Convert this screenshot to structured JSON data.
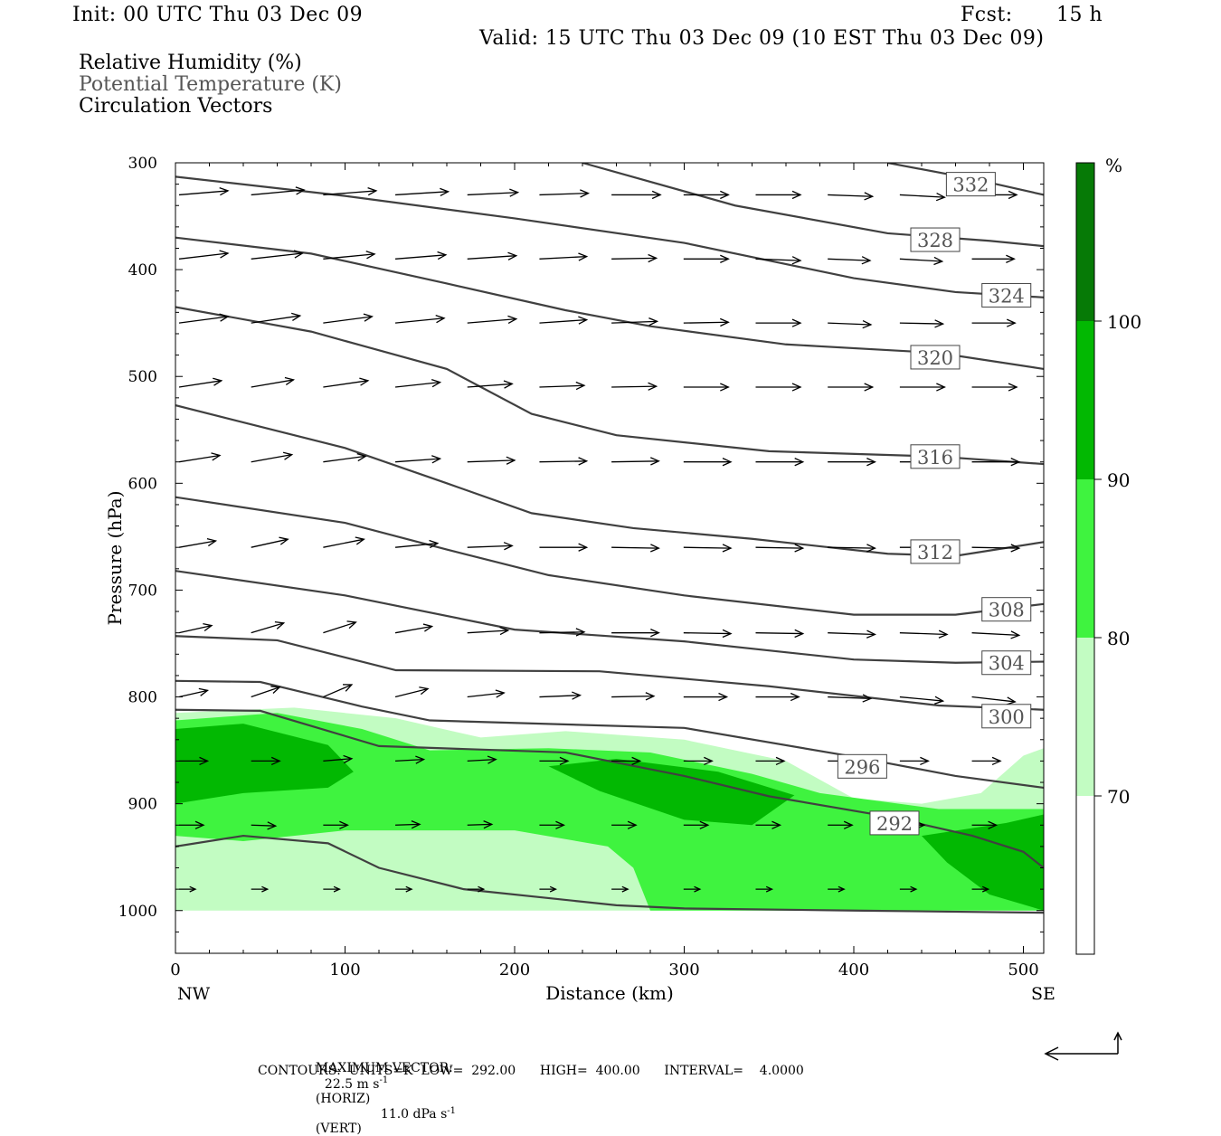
{
  "header": {
    "init": "Init: 00 UTC Thu 03 Dec 09",
    "fcst_label": "Fcst:",
    "fcst_value": "15 h",
    "valid": "Valid: 15 UTC Thu 03 Dec 09 (10 EST Thu 03 Dec 09)"
  },
  "fields": {
    "rh": "Relative Humidity (%)",
    "theta": "Potential Temperature (K)",
    "vectors": "Circulation Vectors"
  },
  "colors": {
    "rh_70_80": "#c2fcc2",
    "rh_80_90": "#3ff33f",
    "rh_90_100": "#02b802",
    "rh_100_plus": "#067a06",
    "contour": "#404040",
    "vector": "#000000"
  },
  "chart_data": {
    "type": "cross-section",
    "xlabel": "Distance (km)",
    "ylabel": "Pressure (hPa)",
    "xlim": [
      0,
      512
    ],
    "ylim": [
      1040,
      300
    ],
    "x_ticks": [
      0,
      100,
      200,
      300,
      400,
      500
    ],
    "y_ticks": [
      300,
      400,
      500,
      600,
      700,
      800,
      900,
      1000
    ],
    "x_tick_labels": [
      "0",
      "100",
      "200",
      "300",
      "400",
      "500"
    ],
    "y_tick_labels": [
      "300",
      "400",
      "500",
      "600",
      "700",
      "800",
      "900",
      "1000"
    ],
    "x_end_labels": {
      "left": "NW",
      "right": "SE"
    },
    "colorbar": {
      "unit": "%",
      "levels": [
        "70",
        "80",
        "90",
        "100"
      ]
    },
    "rh_regions": [
      {
        "level": "70-80",
        "points": [
          [
            0,
            815
          ],
          [
            70,
            810
          ],
          [
            130,
            820
          ],
          [
            180,
            838
          ],
          [
            230,
            832
          ],
          [
            300,
            840
          ],
          [
            360,
            860
          ],
          [
            400,
            895
          ],
          [
            440,
            900
          ],
          [
            475,
            890
          ],
          [
            500,
            855
          ],
          [
            512,
            848
          ],
          [
            512,
            1000
          ],
          [
            0,
            1000
          ]
        ]
      },
      {
        "level": "80-90",
        "points": [
          [
            0,
            822
          ],
          [
            60,
            815
          ],
          [
            110,
            830
          ],
          [
            150,
            850
          ],
          [
            220,
            848
          ],
          [
            280,
            852
          ],
          [
            340,
            872
          ],
          [
            380,
            890
          ],
          [
            450,
            905
          ],
          [
            512,
            905
          ],
          [
            512,
            1000
          ],
          [
            280,
            1000
          ],
          [
            270,
            960
          ],
          [
            255,
            940
          ],
          [
            200,
            925
          ],
          [
            100,
            925
          ],
          [
            40,
            935
          ],
          [
            0,
            930
          ]
        ]
      },
      {
        "level": "90-100",
        "points": [
          [
            0,
            830
          ],
          [
            40,
            825
          ],
          [
            90,
            845
          ],
          [
            105,
            870
          ],
          [
            90,
            885
          ],
          [
            40,
            890
          ],
          [
            0,
            900
          ]
        ]
      },
      {
        "level": "90-100",
        "points": [
          [
            220,
            865
          ],
          [
            260,
            858
          ],
          [
            320,
            870
          ],
          [
            365,
            892
          ],
          [
            340,
            920
          ],
          [
            300,
            915
          ],
          [
            250,
            888
          ]
        ]
      },
      {
        "level": "90-100",
        "points": [
          [
            440,
            930
          ],
          [
            490,
            918
          ],
          [
            512,
            910
          ],
          [
            512,
            1000
          ],
          [
            480,
            985
          ],
          [
            455,
            955
          ]
        ]
      }
    ],
    "theta_contours": [
      {
        "label": "332",
        "points": [
          [
            420,
            300
          ],
          [
            470,
            315
          ],
          [
            512,
            330
          ]
        ],
        "label_at": [
          469,
          320
        ]
      },
      {
        "label": "328",
        "points": [
          [
            240,
            300
          ],
          [
            330,
            340
          ],
          [
            420,
            366
          ],
          [
            480,
            373
          ],
          [
            512,
            378
          ]
        ],
        "label_at": [
          448,
          372
        ]
      },
      {
        "label": "324",
        "points": [
          [
            0,
            313
          ],
          [
            100,
            331
          ],
          [
            200,
            352
          ],
          [
            300,
            375
          ],
          [
            400,
            408
          ],
          [
            460,
            421
          ],
          [
            512,
            426
          ]
        ],
        "label_at": [
          490,
          424
        ]
      },
      {
        "label": "320",
        "points": [
          [
            0,
            370
          ],
          [
            80,
            385
          ],
          [
            160,
            413
          ],
          [
            230,
            438
          ],
          [
            280,
            453
          ],
          [
            360,
            470
          ],
          [
            450,
            478
          ],
          [
            512,
            493
          ]
        ],
        "label_at": [
          448,
          482
        ]
      },
      {
        "label": "316",
        "points": [
          [
            0,
            435
          ],
          [
            80,
            458
          ],
          [
            160,
            493
          ],
          [
            210,
            535
          ],
          [
            260,
            555
          ],
          [
            350,
            570
          ],
          [
            450,
            575
          ],
          [
            512,
            582
          ]
        ],
        "label_at": [
          448,
          575
        ]
      },
      {
        "label": "312",
        "points": [
          [
            0,
            527
          ],
          [
            100,
            567
          ],
          [
            160,
            600
          ],
          [
            210,
            628
          ],
          [
            270,
            642
          ],
          [
            340,
            652
          ],
          [
            420,
            666
          ],
          [
            460,
            668
          ],
          [
            512,
            655
          ]
        ],
        "label_at": [
          448,
          664
        ]
      },
      {
        "label": "308",
        "points": [
          [
            0,
            613
          ],
          [
            100,
            637
          ],
          [
            160,
            662
          ],
          [
            220,
            686
          ],
          [
            300,
            705
          ],
          [
            400,
            723
          ],
          [
            460,
            723
          ],
          [
            512,
            713
          ]
        ],
        "label_at": [
          490,
          718
        ]
      },
      {
        "label": "304",
        "points": [
          [
            0,
            682
          ],
          [
            100,
            705
          ],
          [
            200,
            737
          ],
          [
            300,
            748
          ],
          [
            400,
            765
          ],
          [
            460,
            768
          ],
          [
            512,
            767
          ]
        ],
        "label_at": [
          490,
          768
        ]
      },
      {
        "label": "300",
        "points": [
          [
            0,
            743
          ],
          [
            60,
            747
          ],
          [
            130,
            775
          ],
          [
            250,
            776
          ],
          [
            350,
            790
          ],
          [
            450,
            808
          ],
          [
            512,
            812
          ]
        ],
        "label_at": [
          490,
          818
        ]
      },
      {
        "label": "296",
        "points": [
          [
            0,
            785
          ],
          [
            50,
            786
          ],
          [
            110,
            809
          ],
          [
            150,
            822
          ],
          [
            300,
            829
          ],
          [
            400,
            856
          ],
          [
            460,
            874
          ],
          [
            512,
            885
          ]
        ],
        "label_at": [
          405,
          865
        ]
      },
      {
        "label": "292",
        "points": [
          [
            0,
            812
          ],
          [
            50,
            813
          ],
          [
            120,
            846
          ],
          [
            230,
            852
          ],
          [
            300,
            874
          ],
          [
            350,
            893
          ],
          [
            420,
            912
          ],
          [
            470,
            930
          ],
          [
            500,
            945
          ],
          [
            512,
            960
          ]
        ],
        "label_at": [
          424,
          918
        ]
      },
      {
        "label": "",
        "points": [
          [
            0,
            940
          ],
          [
            40,
            930
          ],
          [
            90,
            937
          ],
          [
            120,
            960
          ],
          [
            170,
            980
          ],
          [
            260,
            995
          ],
          [
            300,
            998
          ],
          [
            400,
            1000
          ],
          [
            512,
            1002
          ]
        ]
      }
    ],
    "vectors": {
      "x": [
        0,
        42.5,
        85,
        127.5,
        170,
        212.5,
        255,
        297.5,
        340,
        382.5,
        425,
        467.5,
        510
      ],
      "p": [
        330,
        390,
        450,
        510,
        580,
        660,
        740,
        800,
        860,
        920,
        980
      ],
      "u": [
        [
          6,
          6.5,
          6.5,
          6.5,
          6.2,
          6,
          6,
          5.5,
          5.5,
          5.5,
          5.5,
          5.5,
          5.5
        ],
        [
          6,
          6.3,
          6.3,
          6.2,
          6,
          5.8,
          5.5,
          5.5,
          5.5,
          5.2,
          5.2,
          5.2,
          5.2
        ],
        [
          6,
          6,
          6,
          6,
          6,
          5.8,
          5.6,
          5.5,
          5.5,
          5.3,
          5.3,
          5.3,
          5.3
        ],
        [
          5.2,
          5.2,
          5.5,
          5.5,
          5.5,
          5.5,
          5.5,
          5.5,
          5.5,
          5.5,
          5.5,
          5.5,
          5.5
        ],
        [
          5,
          5,
          5.2,
          5.5,
          5.8,
          5.8,
          5.8,
          5.8,
          5.8,
          5.8,
          5.8,
          5.8,
          5.8
        ],
        [
          4.5,
          4.5,
          5,
          5.2,
          5.5,
          5.8,
          5.8,
          5.8,
          5.8,
          5.8,
          5.8,
          5.8,
          5.8
        ],
        [
          4,
          4,
          4,
          4.5,
          5,
          5.5,
          5.8,
          5.8,
          5.8,
          5.8,
          5.8,
          5.8,
          5.8
        ],
        [
          3.5,
          3.5,
          3.5,
          4,
          4.5,
          5,
          5.2,
          5.3,
          5.3,
          5.3,
          5.3,
          5.3,
          5.3
        ],
        [
          3.5,
          3.5,
          3.5,
          3.5,
          3.5,
          3.5,
          3.5,
          3.5,
          3.5,
          3.5,
          3.5,
          3.5,
          3.5
        ],
        [
          3,
          3,
          3,
          3,
          3,
          3,
          3,
          3,
          3,
          3,
          3,
          3,
          3
        ],
        [
          2,
          2,
          2,
          2,
          2,
          2,
          2,
          2,
          2,
          2,
          2,
          2,
          2
        ]
      ],
      "w": [
        [
          -0.5,
          -0.6,
          -0.5,
          -0.4,
          -0.3,
          -0.2,
          0,
          0,
          0,
          0.2,
          0.3,
          0,
          -0.2
        ],
        [
          -0.7,
          -0.7,
          -0.6,
          -0.5,
          -0.4,
          -0.3,
          -0.1,
          0,
          0.2,
          0.2,
          0.3,
          0,
          -0.2
        ],
        [
          -0.8,
          -0.9,
          -0.8,
          -0.6,
          -0.5,
          -0.4,
          -0.2,
          -0.1,
          0,
          0.2,
          0.1,
          0,
          -0.2
        ],
        [
          -0.8,
          -0.9,
          -0.8,
          -0.6,
          -0.4,
          -0.2,
          -0.1,
          0,
          0,
          0,
          0,
          0,
          -0.1
        ],
        [
          -0.8,
          -0.9,
          -0.7,
          -0.4,
          -0.2,
          -0.1,
          -0.1,
          0,
          0,
          0,
          0,
          0,
          0
        ],
        [
          -0.8,
          -1.0,
          -1.0,
          -0.5,
          -0.2,
          0,
          0.1,
          0.1,
          0.1,
          0.1,
          0,
          0.1,
          0.2
        ],
        [
          -0.9,
          -1.2,
          -1.3,
          -0.8,
          -0.3,
          -0.1,
          0,
          0.1,
          0.1,
          0.2,
          0.2,
          0.3,
          0.4
        ],
        [
          -0.8,
          -1.2,
          -1.5,
          -1.0,
          -0.5,
          -0.2,
          -0.1,
          0,
          0,
          0.2,
          0.5,
          0.6,
          0.8
        ],
        [
          0,
          0,
          -0.3,
          -0.2,
          -0.2,
          0,
          0,
          0,
          0,
          0,
          0,
          0,
          0
        ],
        [
          0,
          0.1,
          0,
          -0.1,
          -0.1,
          0,
          0,
          0,
          0,
          0,
          0,
          0,
          0
        ],
        [
          0,
          0,
          0,
          0,
          0,
          0,
          0,
          0,
          0,
          0,
          0,
          0,
          0
        ]
      ]
    }
  },
  "footer": {
    "maxvec_prefix": "MAXIMUM VECTOR:",
    "maxvec_horiz": "22.5 m s",
    "maxvec_horiz_exp": "-1",
    "maxvec_horiz_tag": "(HORIZ)",
    "maxvec_vert": "11.0 dPa s",
    "maxvec_vert_exp": "-1",
    "maxvec_vert_tag": "(VERT)",
    "contours": "CONTOURS:  UNITS=K  LOW=  292.00      HIGH=  400.00      INTERVAL=    4.0000"
  }
}
